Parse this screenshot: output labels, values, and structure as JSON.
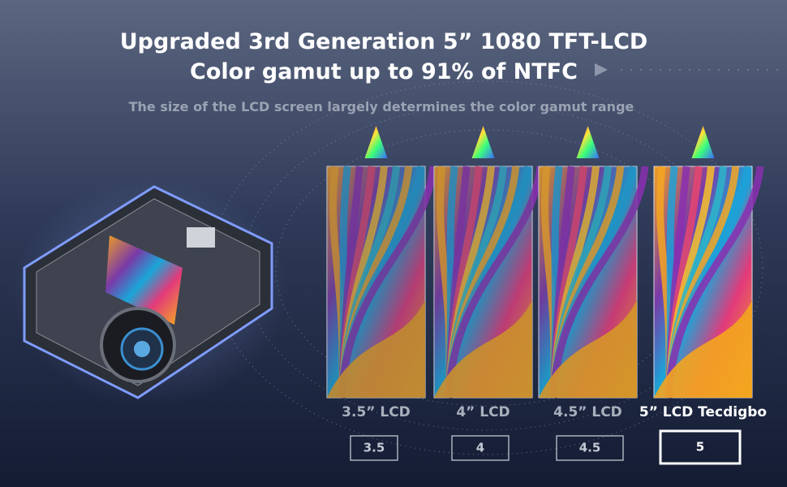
{
  "header": {
    "title_line1": "Upgraded 3rd Generation 5” 1080 TFT-LCD",
    "title_line2": "Color  gamut up to 91% of NTFC",
    "subtitle": "The size of the LCD screen largely determines the color gamut range"
  },
  "panels": [
    {
      "label": "3.5” LCD",
      "size": 3.5
    },
    {
      "label": "4” LCD",
      "size": 4
    },
    {
      "label": "4.5” LCD",
      "size": 4.5
    },
    {
      "label": "5” LCD Tecdigbo",
      "size": 5
    }
  ]
}
